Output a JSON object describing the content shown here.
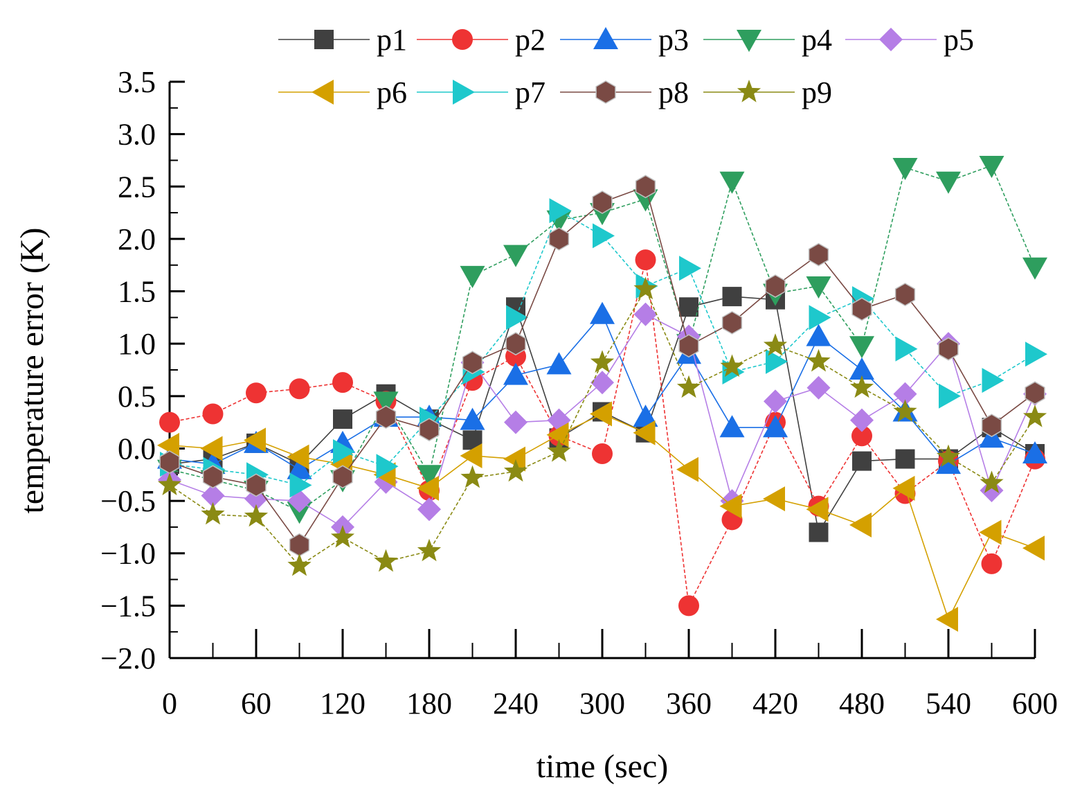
{
  "chart_data": {
    "type": "line",
    "title": "",
    "xlabel": "time (sec)",
    "ylabel": "temperature error (K)",
    "xlim": [
      0,
      600
    ],
    "ylim": [
      -2.0,
      3.5
    ],
    "x_ticks": [
      "0",
      "60",
      "120",
      "180",
      "240",
      "300",
      "360",
      "420",
      "480",
      "540",
      "600"
    ],
    "y_ticks": [
      "3.5",
      "3.0",
      "2.5",
      "2.0",
      "1.5",
      "1.0",
      "0.5",
      "0.0",
      "−0.5",
      "−1.0",
      "−1.5",
      "−2.0"
    ],
    "grid": false,
    "legend_position": "top",
    "x": [
      0,
      30,
      60,
      90,
      120,
      150,
      180,
      210,
      240,
      270,
      300,
      330,
      360,
      390,
      420,
      450,
      480,
      510,
      540,
      570,
      600
    ],
    "series": [
      {
        "name": "p1",
        "color": "#404040",
        "marker": "square",
        "dash": "solid",
        "values": [
          -0.15,
          -0.1,
          0.05,
          -0.15,
          0.28,
          0.52,
          0.28,
          0.08,
          1.35,
          0.1,
          0.35,
          0.15,
          1.35,
          1.45,
          1.42,
          -0.8,
          -0.12,
          -0.1,
          -0.1,
          0.2,
          -0.05
        ]
      },
      {
        "name": "p2",
        "color": "#ee3333",
        "marker": "circle",
        "dash": "dashed",
        "values": [
          0.25,
          0.33,
          0.53,
          0.57,
          0.63,
          0.45,
          -0.4,
          0.65,
          0.88,
          0.12,
          -0.05,
          1.8,
          -1.5,
          -0.68,
          0.25,
          -0.55,
          0.12,
          -0.43,
          -0.12,
          -1.1,
          -0.1
        ]
      },
      {
        "name": "p3",
        "color": "#1a6fe6",
        "marker": "triangle-up",
        "dash": "solid",
        "values": [
          -0.1,
          -0.15,
          0.05,
          -0.2,
          0.05,
          0.3,
          0.3,
          0.27,
          0.7,
          0.8,
          1.28,
          0.3,
          0.9,
          0.2,
          0.2,
          1.07,
          0.75,
          0.35,
          -0.15,
          0.1,
          -0.05
        ]
      },
      {
        "name": "p4",
        "color": "#2e9e5e",
        "marker": "triangle-down",
        "dash": "dashed",
        "values": [
          -0.2,
          -0.3,
          -0.4,
          -0.6,
          -0.3,
          0.45,
          -0.25,
          1.65,
          1.85,
          2.18,
          2.25,
          2.38,
          1.0,
          2.55,
          1.48,
          1.55,
          0.98,
          2.68,
          2.55,
          2.7,
          1.73
        ]
      },
      {
        "name": "p5",
        "color": "#b57ee6",
        "marker": "diamond",
        "dash": "solid",
        "values": [
          -0.3,
          -0.45,
          -0.48,
          -0.5,
          -0.75,
          -0.32,
          -0.58,
          0.82,
          0.25,
          0.27,
          0.63,
          1.28,
          1.07,
          -0.5,
          0.45,
          0.58,
          0.27,
          0.52,
          1.0,
          -0.4,
          0.52
        ]
      },
      {
        "name": "p6",
        "color": "#d4a000",
        "marker": "triangle-left",
        "dash": "solid",
        "values": [
          0.03,
          0.0,
          0.08,
          -0.08,
          -0.15,
          -0.25,
          -0.38,
          -0.07,
          -0.1,
          0.13,
          0.33,
          0.15,
          -0.2,
          -0.55,
          -0.48,
          -0.58,
          -0.73,
          -0.38,
          -1.63,
          -0.8,
          -0.95
        ]
      },
      {
        "name": "p7",
        "color": "#1ec8cc",
        "marker": "triangle-right",
        "dash": "dashed",
        "values": [
          -0.15,
          -0.2,
          -0.25,
          -0.35,
          -0.03,
          -0.17,
          0.28,
          0.73,
          1.25,
          2.27,
          2.03,
          1.55,
          1.72,
          0.73,
          0.83,
          1.25,
          1.43,
          0.95,
          0.5,
          0.65,
          0.9
        ]
      },
      {
        "name": "p8",
        "color": "#7a4a44",
        "marker": "hexagon",
        "dash": "solid",
        "values": [
          -0.13,
          -0.27,
          -0.35,
          -0.92,
          -0.27,
          0.3,
          0.18,
          0.82,
          1.0,
          2.0,
          2.35,
          2.5,
          0.98,
          1.2,
          1.55,
          1.85,
          1.33,
          1.47,
          0.95,
          0.22,
          0.53
        ]
      },
      {
        "name": "p9",
        "color": "#8a8a14",
        "marker": "star",
        "dash": "dashed",
        "values": [
          -0.35,
          -0.63,
          -0.65,
          -1.12,
          -0.85,
          -1.08,
          -0.98,
          -0.28,
          -0.22,
          -0.03,
          0.82,
          1.52,
          0.58,
          0.78,
          0.98,
          0.83,
          0.58,
          0.35,
          -0.08,
          -0.33,
          0.3
        ]
      }
    ]
  }
}
